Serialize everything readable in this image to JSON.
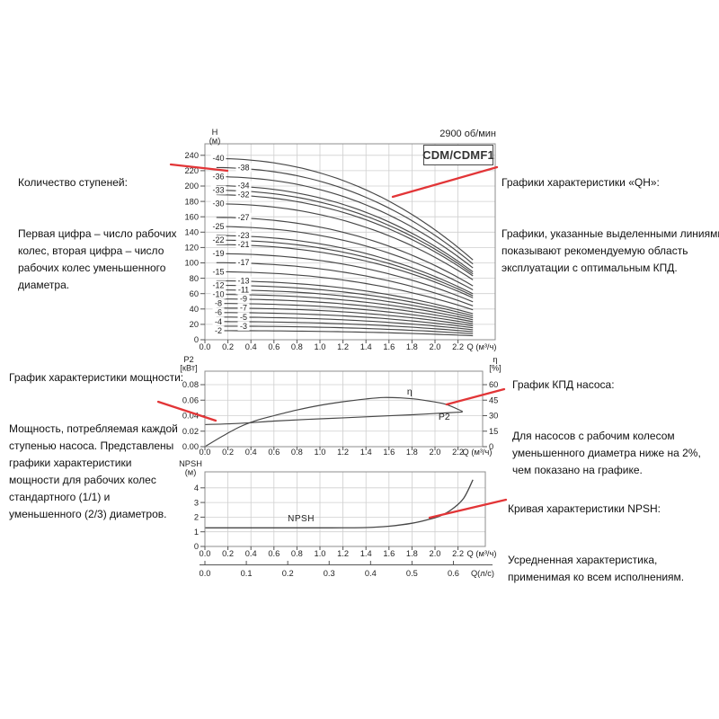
{
  "page": {
    "background": "#ffffff"
  },
  "colors": {
    "accent_red": "#e23537",
    "curve": "#474747",
    "grid": "#cfcfcf",
    "frame": "#8c8c8c",
    "tick": "#555555",
    "text": "#1a1a1a"
  },
  "header": {
    "speed": "2900 об/мин",
    "model": "CDM/CDMF1"
  },
  "annotations": {
    "stages": {
      "title": "Количество ступеней:",
      "body": "Первая цифра – число рабочих\nколес, вторая цифра – число\nрабочих колес уменьшенного\nдиаметра."
    },
    "qh": {
      "title": "Графики характеристики «QH»:",
      "body": "Графики, указанные выделенными линиями,\nпоказывают рекомендуемую область\nэксплуатации с оптимальным КПД."
    },
    "power": {
      "title": "График характеристики мощности:",
      "body": "Мощность, потребляемая каждой\nступенью насоса. Представлены\nграфики характеристики\nмощности для рабочих колес\nстандартного (1/1) и\nуменьшенного (2/3) диаметров."
    },
    "efficiency": {
      "title": "График КПД насоса:",
      "body": "Для насосов с рабочим колесом\nуменьшенного диаметра ниже на 2%,\nчем показано на графике."
    },
    "npsh": {
      "title": "Кривая характеристики NPSH:",
      "body": "Усредненная характеристика,\nприменимая ко всем исполнениям."
    }
  },
  "chart_data": [
    {
      "id": "qh",
      "type": "line",
      "title": "CDM/CDMF1",
      "rpm": "2900 об/мин",
      "xlabel": "Q (м³/ч)",
      "ylabel": "H (м)",
      "ylabel_lines": [
        "H",
        "(м)"
      ],
      "xlim": [
        0,
        2.52
      ],
      "ylim": [
        0,
        255
      ],
      "grid": true,
      "xticks": [
        0.0,
        0.2,
        0.4,
        0.6,
        0.8,
        1.0,
        1.2,
        1.4,
        1.6,
        1.8,
        2.0,
        2.2
      ],
      "yticks": [
        0,
        20,
        40,
        60,
        80,
        100,
        120,
        140,
        160,
        180,
        200,
        220,
        240
      ],
      "curve_model": {
        "q_start": 0.1,
        "q_end": 2.33,
        "drop": 0.56,
        "exp": 2.3
      },
      "series": [
        {
          "label": "-40",
          "h0": 236.0,
          "col": "left"
        },
        {
          "label": "-38",
          "h0": 224.2,
          "col": "right"
        },
        {
          "label": "-36",
          "h0": 212.4,
          "col": "left"
        },
        {
          "label": "-34",
          "h0": 200.6,
          "col": "right"
        },
        {
          "label": "-33",
          "h0": 194.7,
          "col": "left"
        },
        {
          "label": "-32",
          "h0": 188.8,
          "col": "right"
        },
        {
          "label": "-30",
          "h0": 177.0,
          "col": "left"
        },
        {
          "label": "-27",
          "h0": 159.3,
          "col": "right"
        },
        {
          "label": "-25",
          "h0": 147.5,
          "col": "left"
        },
        {
          "label": "-23",
          "h0": 135.7,
          "col": "right"
        },
        {
          "label": "-22",
          "h0": 129.8,
          "col": "left"
        },
        {
          "label": "-21",
          "h0": 123.9,
          "col": "right"
        },
        {
          "label": "-19",
          "h0": 112.1,
          "col": "left"
        },
        {
          "label": "-17",
          "h0": 100.3,
          "col": "right"
        },
        {
          "label": "-15",
          "h0": 88.5,
          "col": "left"
        },
        {
          "label": "-13",
          "h0": 76.7,
          "col": "right"
        },
        {
          "label": "-12",
          "h0": 70.8,
          "col": "left"
        },
        {
          "label": "-11",
          "h0": 64.9,
          "col": "right"
        },
        {
          "label": "-10",
          "h0": 59.0,
          "col": "left"
        },
        {
          "label": "-9",
          "h0": 53.1,
          "col": "right"
        },
        {
          "label": "-8",
          "h0": 47.2,
          "col": "left"
        },
        {
          "label": "-7",
          "h0": 41.3,
          "col": "right"
        },
        {
          "label": "-6",
          "h0": 35.4,
          "col": "left"
        },
        {
          "label": "-5",
          "h0": 29.5,
          "col": "right"
        },
        {
          "label": "-4",
          "h0": 23.6,
          "col": "left"
        },
        {
          "label": "-3",
          "h0": 17.7,
          "col": "right"
        },
        {
          "label": "-2",
          "h0": 11.8,
          "col": "left"
        }
      ]
    },
    {
      "id": "power_efficiency",
      "type": "line",
      "xlabel": "Q (м³/ч)",
      "ylabel_left_lines": [
        "P2",
        "[кВт]"
      ],
      "ylabel_right_lines": [
        "η",
        "[%]"
      ],
      "xlim": [
        0,
        2.41
      ],
      "ylim_left": [
        0,
        0.0975
      ],
      "ylim_right": [
        0,
        73
      ],
      "grid": true,
      "xticks": [
        0.0,
        0.2,
        0.4,
        0.6,
        0.8,
        1.0,
        1.2,
        1.4,
        1.6,
        1.8,
        2.0,
        2.2
      ],
      "yticks_left": [
        0.0,
        0.02,
        0.04,
        0.06,
        0.08
      ],
      "yticks_right": [
        0,
        15,
        30,
        45,
        60
      ],
      "series": [
        {
          "name": "η",
          "axis": "right",
          "label_pos": [
            1.78,
            50.5
          ],
          "points": [
            [
              0,
              0
            ],
            [
              0.15,
              10
            ],
            [
              0.3,
              19
            ],
            [
              0.45,
              25.5
            ],
            [
              0.6,
              30
            ],
            [
              0.8,
              35.5
            ],
            [
              1.0,
              40
            ],
            [
              1.2,
              43.5
            ],
            [
              1.4,
              46.2
            ],
            [
              1.55,
              47.6
            ],
            [
              1.7,
              47.2
            ],
            [
              1.85,
              45.8
            ],
            [
              2.0,
              43.2
            ],
            [
              2.1,
              40.8
            ],
            [
              2.24,
              34.2
            ]
          ]
        },
        {
          "name": "P2",
          "axis": "left",
          "label_pos": [
            2.08,
            0.0345
          ],
          "points": [
            [
              0,
              0.0285
            ],
            [
              0.3,
              0.03
            ],
            [
              0.6,
              0.033
            ],
            [
              0.9,
              0.0352
            ],
            [
              1.2,
              0.0372
            ],
            [
              1.5,
              0.0392
            ],
            [
              1.8,
              0.0412
            ],
            [
              2.0,
              0.0428
            ],
            [
              2.24,
              0.0448
            ]
          ]
        }
      ]
    },
    {
      "id": "npsh",
      "type": "line",
      "xlabel": "Q (м³/ч)",
      "ylabel": "NPSH (м)",
      "ylabel_lines": [
        "NPSH",
        "(м)"
      ],
      "xlim": [
        0,
        2.44
      ],
      "ylim": [
        0,
        5.1
      ],
      "grid": true,
      "xticks": [
        0.0,
        0.2,
        0.4,
        0.6,
        0.8,
        1.0,
        1.2,
        1.4,
        1.6,
        1.8,
        2.0,
        2.2
      ],
      "yticks": [
        0,
        1,
        2,
        3,
        4
      ],
      "secondary_xaxis": {
        "label": "Q(л/с)",
        "ticks": [
          0.0,
          0.1,
          0.2,
          0.3,
          0.4,
          0.5,
          0.6
        ],
        "m3h_per_unit": 3.6
      },
      "series": [
        {
          "name": "NPSH",
          "label_pos": [
            0.72,
            1.72
          ],
          "points": [
            [
              0,
              1.27
            ],
            [
              0.6,
              1.27
            ],
            [
              1.1,
              1.27
            ],
            [
              1.4,
              1.29
            ],
            [
              1.6,
              1.38
            ],
            [
              1.8,
              1.58
            ],
            [
              1.95,
              1.85
            ],
            [
              2.05,
              2.1
            ],
            [
              2.15,
              2.55
            ],
            [
              2.25,
              3.3
            ],
            [
              2.33,
              4.55
            ]
          ]
        }
      ]
    }
  ]
}
